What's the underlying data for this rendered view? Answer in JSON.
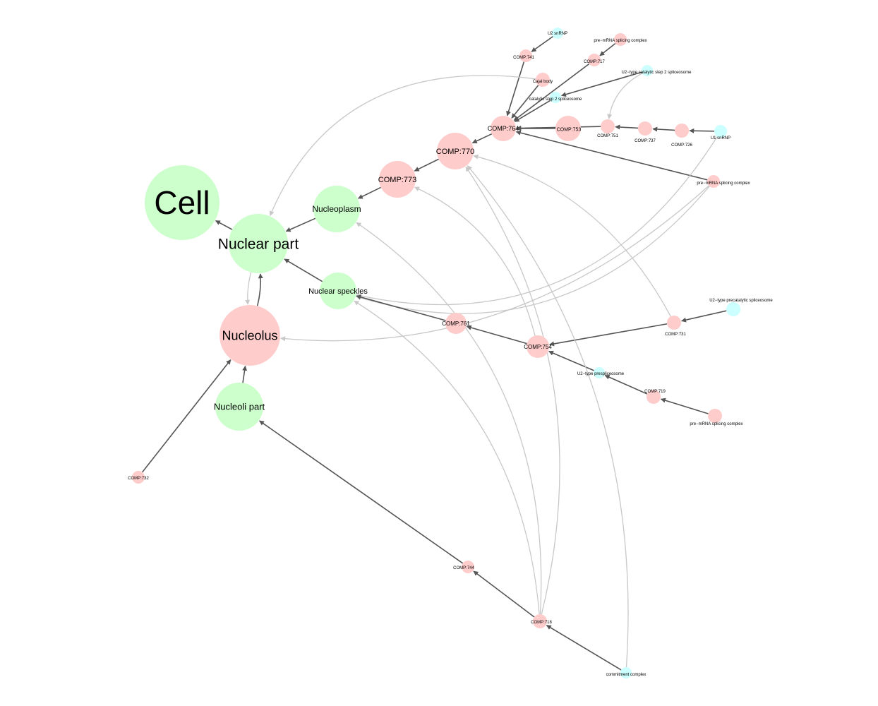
{
  "colors": {
    "compartment": "#ccffcc",
    "complex": "#ffcccc",
    "component": "#ccffff",
    "edge_dark": "#555555",
    "edge_light": "#c8c8c8"
  },
  "nodes": [
    {
      "id": "cell",
      "label": "Cell",
      "kind": "compartment"
    },
    {
      "id": "nuclear_part",
      "label": "Nuclear part",
      "kind": "compartment"
    },
    {
      "id": "nucleoplasm",
      "label": "Nucleoplasm",
      "kind": "compartment"
    },
    {
      "id": "nuclear_speckles",
      "label": "Nuclear speckles",
      "kind": "compartment"
    },
    {
      "id": "nucleolus",
      "label": "Nucleolus",
      "kind": "complex"
    },
    {
      "id": "nucleoli_part",
      "label": "Nucleoli part",
      "kind": "compartment"
    },
    {
      "id": "comp773",
      "label": "COMP:773",
      "kind": "complex"
    },
    {
      "id": "comp770",
      "label": "COMP:770",
      "kind": "complex"
    },
    {
      "id": "comp764",
      "label": "COMP:764",
      "kind": "complex"
    },
    {
      "id": "comp753",
      "label": "COMP:753",
      "kind": "complex"
    },
    {
      "id": "comp751",
      "label": "COMP:751",
      "kind": "complex"
    },
    {
      "id": "comp737",
      "label": "COMP:737",
      "kind": "complex"
    },
    {
      "id": "comp726",
      "label": "COMP:726",
      "kind": "complex"
    },
    {
      "id": "u1_snrnp",
      "label": "U1 snRNP",
      "kind": "component"
    },
    {
      "id": "comp741",
      "label": "COMP:741",
      "kind": "complex"
    },
    {
      "id": "u2_snrnp",
      "label": "U2 snRNP",
      "kind": "component"
    },
    {
      "id": "comp717",
      "label": "COMP:717",
      "kind": "complex"
    },
    {
      "id": "premrna_top",
      "label": "pre−mRNA splicing complex",
      "kind": "complex"
    },
    {
      "id": "cajal_body",
      "label": "Cajal body",
      "kind": "complex"
    },
    {
      "id": "catalytic_step2",
      "label": "catalytic step 2 spliceosome",
      "kind": "component"
    },
    {
      "id": "u2_catalytic_step2",
      "label": "U2−type catalytic step 2 spliceosome",
      "kind": "component"
    },
    {
      "id": "premrna_mid",
      "label": "pre−mRNA splicing complex",
      "kind": "complex"
    },
    {
      "id": "comp761",
      "label": "COMP:761",
      "kind": "complex"
    },
    {
      "id": "comp754",
      "label": "COMP:754",
      "kind": "complex"
    },
    {
      "id": "comp731",
      "label": "COMP:731",
      "kind": "complex"
    },
    {
      "id": "u2_precatalytic",
      "label": "U2−type precatalytic spliceosome",
      "kind": "component"
    },
    {
      "id": "u2_prespliceosome",
      "label": "U2−type prespliceosome",
      "kind": "component"
    },
    {
      "id": "comp719",
      "label": "COMP:719",
      "kind": "complex"
    },
    {
      "id": "premrna_low",
      "label": "pre−mRNA splicing complex",
      "kind": "complex"
    },
    {
      "id": "comp732",
      "label": "COMP:732",
      "kind": "complex"
    },
    {
      "id": "comp744",
      "label": "COMP:744",
      "kind": "complex"
    },
    {
      "id": "comp718",
      "label": "COMP:718",
      "kind": "complex"
    },
    {
      "id": "commitment_complex",
      "label": "commitment complex",
      "kind": "component"
    }
  ],
  "edges": [
    {
      "from": "nuclear_part",
      "to": "cell",
      "style": "dark"
    },
    {
      "from": "nucleoplasm",
      "to": "nuclear_part",
      "style": "dark"
    },
    {
      "from": "nuclear_speckles",
      "to": "nuclear_part",
      "style": "dark"
    },
    {
      "from": "nucleolus",
      "to": "nuclear_part",
      "style": "dark"
    },
    {
      "from": "nuclear_part",
      "to": "nucleolus",
      "style": "light"
    },
    {
      "from": "nucleoli_part",
      "to": "nucleolus",
      "style": "dark"
    },
    {
      "from": "comp773",
      "to": "nucleoplasm",
      "style": "dark"
    },
    {
      "from": "comp770",
      "to": "comp773",
      "style": "dark"
    },
    {
      "from": "comp764",
      "to": "comp770",
      "style": "dark"
    },
    {
      "from": "comp753",
      "to": "comp764",
      "style": "dark"
    },
    {
      "from": "comp751",
      "to": "comp764",
      "style": "dark"
    },
    {
      "from": "comp737",
      "to": "comp751",
      "style": "dark"
    },
    {
      "from": "comp726",
      "to": "comp737",
      "style": "dark"
    },
    {
      "from": "u1_snrnp",
      "to": "comp726",
      "style": "dark"
    },
    {
      "from": "u2_snrnp",
      "to": "comp741",
      "style": "dark"
    },
    {
      "from": "comp741",
      "to": "comp764",
      "style": "dark"
    },
    {
      "from": "premrna_top",
      "to": "comp717",
      "style": "dark"
    },
    {
      "from": "comp717",
      "to": "comp764",
      "style": "dark"
    },
    {
      "from": "cajal_body",
      "to": "comp764",
      "style": "dark"
    },
    {
      "from": "catalytic_step2",
      "to": "comp764",
      "style": "dark"
    },
    {
      "from": "u2_catalytic_step2",
      "to": "catalytic_step2",
      "style": "dark"
    },
    {
      "from": "premrna_mid",
      "to": "comp764",
      "style": "dark"
    },
    {
      "from": "u2_catalytic_step2",
      "to": "comp751",
      "style": "light"
    },
    {
      "from": "cajal_body",
      "to": "nuclear_part",
      "style": "light"
    },
    {
      "from": "u1_snrnp",
      "to": "nuclear_speckles",
      "style": "light"
    },
    {
      "from": "premrna_mid",
      "to": "nuclear_speckles",
      "style": "light"
    },
    {
      "from": "premrna_mid",
      "to": "nucleolus",
      "style": "light"
    },
    {
      "from": "comp761",
      "to": "nuclear_speckles",
      "style": "dark"
    },
    {
      "from": "comp754",
      "to": "comp761",
      "style": "dark"
    },
    {
      "from": "comp731",
      "to": "comp754",
      "style": "dark"
    },
    {
      "from": "u2_precatalytic",
      "to": "comp731",
      "style": "dark"
    },
    {
      "from": "u2_prespliceosome",
      "to": "comp754",
      "style": "dark"
    },
    {
      "from": "comp719",
      "to": "u2_prespliceosome",
      "style": "dark"
    },
    {
      "from": "premrna_low",
      "to": "comp719",
      "style": "dark"
    },
    {
      "from": "comp731",
      "to": "comp770",
      "style": "light"
    },
    {
      "from": "comp754",
      "to": "comp773",
      "style": "light"
    },
    {
      "from": "comp732",
      "to": "nucleolus",
      "style": "dark"
    },
    {
      "from": "comp744",
      "to": "nucleoli_part",
      "style": "dark"
    },
    {
      "from": "comp718",
      "to": "comp744",
      "style": "dark"
    },
    {
      "from": "commitment_complex",
      "to": "comp718",
      "style": "dark"
    },
    {
      "from": "comp718",
      "to": "nucleoplasm",
      "style": "light"
    },
    {
      "from": "comp718",
      "to": "comp770",
      "style": "light"
    },
    {
      "from": "comp718",
      "to": "nuclear_speckles",
      "style": "light"
    },
    {
      "from": "commitment_complex",
      "to": "comp770",
      "style": "light"
    }
  ]
}
